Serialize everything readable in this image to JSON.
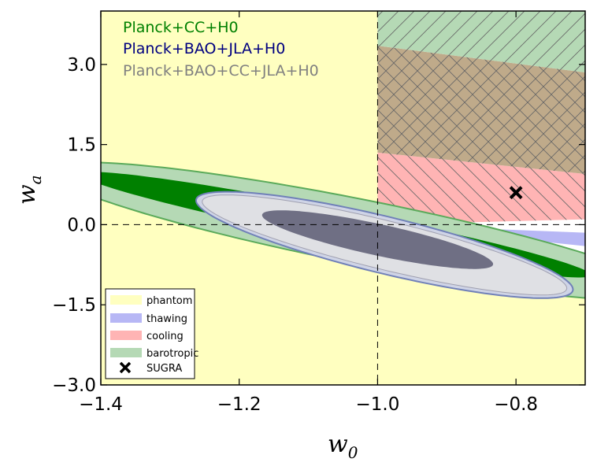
{
  "chart_data": {
    "type": "contour",
    "title": "",
    "xlabel": "w",
    "xlabel_sub": "0",
    "ylabel": "w",
    "ylabel_sub": "a",
    "xlim": [
      -1.4,
      -0.7
    ],
    "ylim": [
      -3.0,
      4.0
    ],
    "x_ticks": [
      -1.4,
      -1.2,
      -1.0,
      -0.8
    ],
    "x_tick_labels": [
      "−1.4",
      "−1.2",
      "−1.0",
      "−0.8"
    ],
    "y_ticks": [
      -3.0,
      -1.5,
      0.0,
      1.5,
      3.0
    ],
    "y_tick_labels": [
      "−3.0",
      "−1.5",
      "0.0",
      "1.5",
      "3.0"
    ],
    "reference_lines": [
      {
        "orientation": "vertical",
        "value": -1.0,
        "style": "dashed"
      },
      {
        "orientation": "horizontal",
        "value": 0.0,
        "style": "dashed"
      }
    ],
    "regions": [
      {
        "name": "phantom",
        "color": "#ffffc0",
        "description": "w0 < -1"
      },
      {
        "name": "thawing",
        "color": "#b7b7f5"
      },
      {
        "name": "cooling",
        "color": "#ffb4b4",
        "hatch": "diagonal"
      },
      {
        "name": "barotropic",
        "color": "#b5d9b5",
        "hatch": "diagonal"
      }
    ],
    "datasets": [
      {
        "name": "Planck+CC+H0",
        "color": "#008000",
        "levels": [
          "68%",
          "95%"
        ]
      },
      {
        "name": "Planck+BAO+JLA+H0",
        "color": "#000080",
        "levels": [
          "68%",
          "95%"
        ]
      },
      {
        "name": "Planck+BAO+CC+JLA+H0",
        "color": "#808080",
        "levels": [
          "68%",
          "95%"
        ]
      }
    ],
    "points": [
      {
        "name": "SUGRA",
        "x": -0.8,
        "y": 0.6,
        "marker": "x"
      }
    ],
    "legend_entries": [
      {
        "label": "phantom",
        "color": "#ffffc0"
      },
      {
        "label": "thawing",
        "color": "#b7b7f5"
      },
      {
        "label": "cooling",
        "color": "#ffb4b4"
      },
      {
        "label": "barotropic",
        "color": "#b5d9b5"
      },
      {
        "label": "SUGRA",
        "marker": "x"
      }
    ],
    "legend_position": "lower-left",
    "dataset_labels_position": "top-left"
  }
}
